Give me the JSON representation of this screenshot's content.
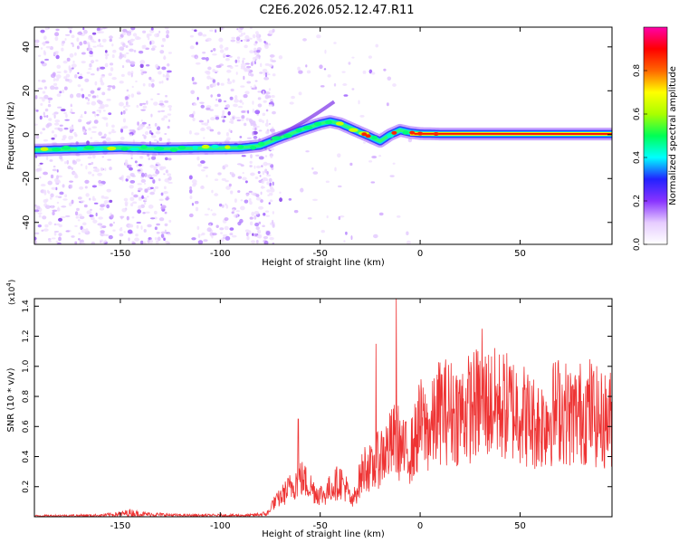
{
  "title": "C2E6.2026.052.12.47.R11",
  "chart_data": [
    {
      "type": "heatmap",
      "name": "spectrogram",
      "xlabel": "Height of straight line (km)",
      "ylabel": "Frequency (Hz)",
      "xlim": [
        -193,
        96
      ],
      "ylim": [
        -50,
        49
      ],
      "xticks": [
        -150,
        -100,
        -50,
        0,
        50
      ],
      "yticks": [
        -40,
        -20,
        0,
        20,
        40
      ],
      "ridge": {
        "x": [
          -190,
          -170,
          -150,
          -130,
          -110,
          -90,
          -80,
          -72,
          -60,
          -50,
          -45,
          -40,
          -35,
          -30,
          -25,
          -20,
          -15,
          -10,
          -5,
          0,
          10,
          30,
          60,
          95
        ],
        "y": [
          -7,
          -6.5,
          -6,
          -6.5,
          -6.2,
          -6,
          -5,
          -2,
          2,
          5,
          6,
          5,
          3,
          1,
          -1,
          -3,
          0,
          2,
          1,
          0.5,
          0.3,
          0.3,
          0.3,
          0.3
        ]
      },
      "colorbar": {
        "label": "Normalized spectral amplitude",
        "range": [
          0,
          1
        ],
        "ticks": [
          "0.0",
          "0.2",
          "0.4",
          "0.6",
          "0.8"
        ],
        "colors": [
          "#ffffff",
          "#e6ccff",
          "#8833ff",
          "#2222ff",
          "#00ffff",
          "#00ff55",
          "#aaff00",
          "#ffff00",
          "#ff6600",
          "#ff0000",
          "#ff00aa"
        ]
      }
    },
    {
      "type": "line",
      "name": "snr",
      "xlabel": "Height of straight line (km)",
      "ylabel": "SNR (10 * v/v)",
      "scale_note": "(x10",
      "scale_exp": "4",
      "xlim": [
        -193,
        96
      ],
      "ylim": [
        0,
        1.45
      ],
      "xticks": [
        -150,
        -100,
        -50,
        0,
        50
      ],
      "yticks": [
        "0.2",
        "0.4",
        "0.6",
        "0.8",
        "1.0",
        "1.2",
        "1.4"
      ],
      "color": "#ee3333",
      "envelope_x": [
        -193,
        -160,
        -150,
        -145,
        -140,
        -120,
        -100,
        -85,
        -78,
        -72,
        -66,
        -60,
        -56,
        -52,
        -48,
        -44,
        -40,
        -37,
        -34,
        -30,
        -27,
        -24,
        -20,
        -16,
        -12,
        -8,
        -4,
        0,
        5,
        10,
        20,
        30,
        40,
        50,
        55,
        60,
        65,
        70,
        75,
        80,
        85,
        90,
        96
      ],
      "envelope_y": [
        0.02,
        0.03,
        0.06,
        0.09,
        0.06,
        0.03,
        0.03,
        0.03,
        0.06,
        0.14,
        0.25,
        0.36,
        0.3,
        0.22,
        0.2,
        0.28,
        0.33,
        0.26,
        0.12,
        0.35,
        0.48,
        0.42,
        0.56,
        0.62,
        0.72,
        0.58,
        0.62,
        0.85,
        0.78,
        0.98,
        0.95,
        1.05,
        1.02,
        0.98,
        0.88,
        0.85,
        0.93,
        1.0,
        0.92,
        0.95,
        0.98,
        0.88,
        0.9
      ],
      "spikes": [
        {
          "x": -61,
          "y": 0.65
        },
        {
          "x": -12,
          "y": 1.45
        },
        {
          "x": -22,
          "y": 1.15
        },
        {
          "x": 31,
          "y": 1.25
        }
      ]
    }
  ]
}
